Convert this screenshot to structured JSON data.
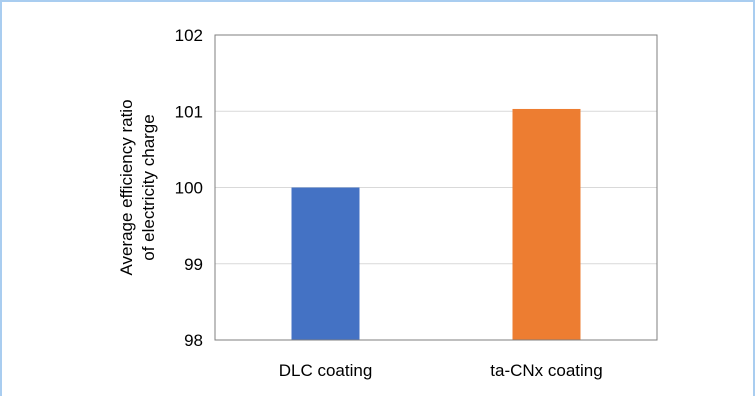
{
  "chart_data": {
    "type": "bar",
    "categories": [
      "DLC coating",
      "ta-CNx coating"
    ],
    "values": [
      100.0,
      101.03
    ],
    "colors": [
      "#4472c4",
      "#ed7d31"
    ],
    "ylabel_lines": [
      "Average efficiency ratio",
      "of electricity charge"
    ],
    "ylim": [
      98,
      102
    ],
    "yticks": [
      "98",
      "99",
      "100",
      "101",
      "102"
    ],
    "grid": true,
    "gridColor": "#d9d9d9",
    "legend": "none"
  }
}
